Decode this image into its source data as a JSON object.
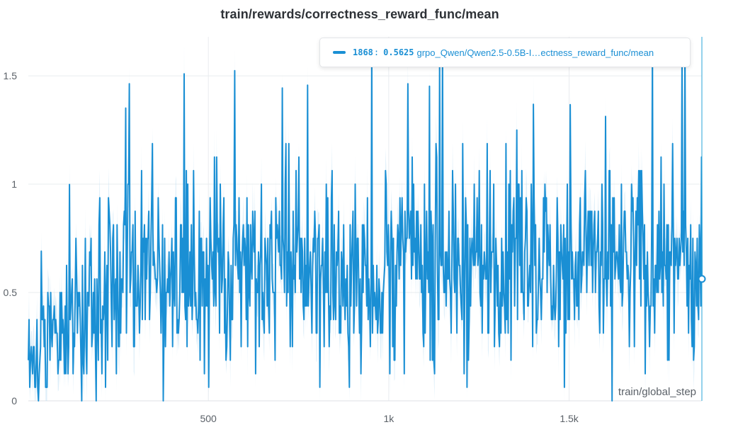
{
  "colors": {
    "series": "#1a8fd4",
    "band": "#b9dcf2",
    "grid": "#e9ecef",
    "hover_line": "#2aa6d8"
  },
  "chart_data": {
    "type": "line",
    "title": "train/rewards/correctness_reward_func/mean",
    "xlabel": "train/global_step",
    "ylabel": "",
    "xlim": [
      1,
      1868
    ],
    "ylim": [
      0,
      1.68
    ],
    "xticks": [
      500,
      1000,
      1500
    ],
    "xtick_labels": [
      "500",
      "1k",
      "1.5k"
    ],
    "yticks": [
      0,
      0.5,
      1,
      1.5
    ],
    "ytick_labels": [
      "0",
      "0.5",
      "1",
      "1.5"
    ],
    "grid": true,
    "legend": "none",
    "series": [
      {
        "name": "grpo_Qwen/Qwen2.5-0.5B-I…ectness_reward_func/mean",
        "x": [
          1,
          50,
          100,
          150,
          200,
          250,
          300,
          350,
          400,
          450,
          500,
          550,
          600,
          650,
          700,
          750,
          800,
          850,
          900,
          950,
          1000,
          1050,
          1100,
          1150,
          1200,
          1250,
          1300,
          1350,
          1400,
          1450,
          1500,
          1550,
          1600,
          1650,
          1700,
          1750,
          1800,
          1868
        ],
        "mean_values": [
          0.22,
          0.27,
          0.33,
          0.42,
          0.5,
          0.54,
          0.57,
          0.58,
          0.59,
          0.6,
          0.6,
          0.61,
          0.62,
          0.62,
          0.62,
          0.62,
          0.63,
          0.63,
          0.63,
          0.63,
          0.63,
          0.64,
          0.64,
          0.64,
          0.64,
          0.64,
          0.64,
          0.64,
          0.64,
          0.64,
          0.64,
          0.64,
          0.64,
          0.64,
          0.64,
          0.64,
          0.64,
          0.5625
        ],
        "amplitude": [
          0.2,
          0.25,
          0.3,
          0.35,
          0.4,
          0.42,
          0.45,
          0.45,
          0.45,
          0.45,
          0.45,
          0.45,
          0.45,
          0.45,
          0.45,
          0.45,
          0.45,
          0.45,
          0.45,
          0.45,
          0.45,
          0.45,
          0.45,
          0.45,
          0.45,
          0.45,
          0.45,
          0.45,
          0.45,
          0.45,
          0.45,
          0.45,
          0.45,
          0.45,
          0.45,
          0.45,
          0.45,
          0.45
        ],
        "max_value": 1.62
      }
    ],
    "hover": {
      "step": "1868",
      "value": "0.5625",
      "run": "grpo_Qwen/Qwen2.5-0.5B-I…ectness_reward_func/mean"
    }
  }
}
